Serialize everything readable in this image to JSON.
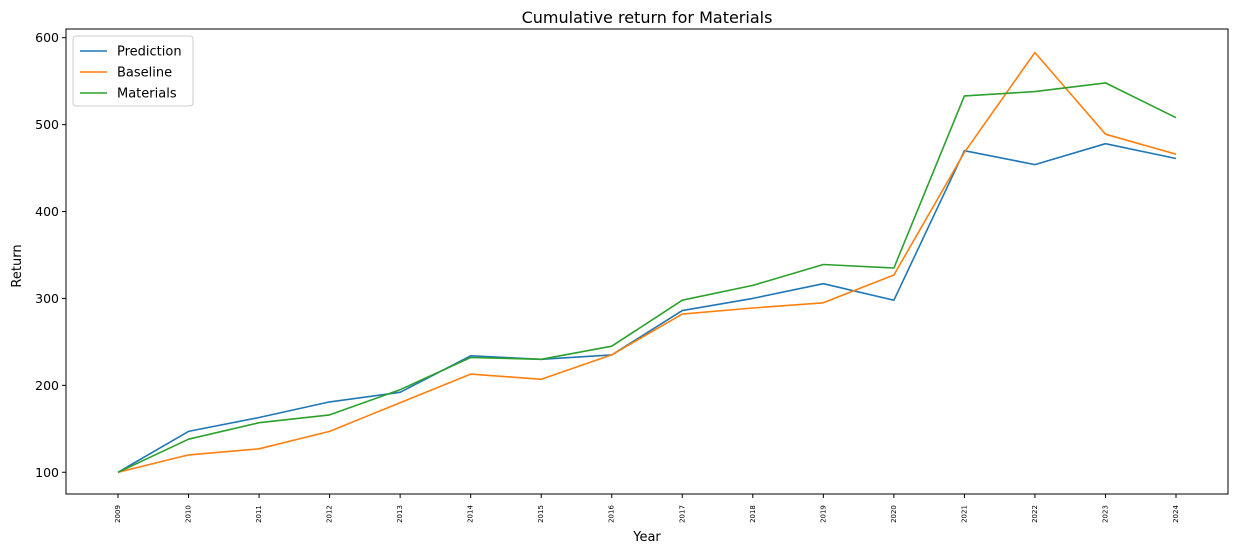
{
  "chart_data": {
    "type": "line",
    "title": "Cumulative return for Materials",
    "xlabel": "Year",
    "ylabel": "Return",
    "categories": [
      "2009",
      "2010",
      "2011",
      "2012",
      "2013",
      "2014",
      "2015",
      "2016",
      "2017",
      "2018",
      "2019",
      "2020",
      "2021",
      "2022",
      "2023",
      "2024"
    ],
    "y_ticks": [
      100,
      200,
      300,
      400,
      500,
      600
    ],
    "ylim": [
      75,
      610
    ],
    "grid": false,
    "legend_position": "upper-left",
    "series": [
      {
        "name": "Prediction",
        "color": "#1f77b4",
        "values": [
          100,
          147,
          163,
          181,
          192,
          234,
          230,
          235,
          286,
          300,
          317,
          298,
          470,
          454,
          478,
          461
        ]
      },
      {
        "name": "Baseline",
        "color": "#ff7f0e",
        "values": [
          100,
          120,
          127,
          147,
          180,
          213,
          207,
          235,
          282,
          289,
          295,
          327,
          468,
          583,
          489,
          466
        ]
      },
      {
        "name": "Materials",
        "color": "#2ca02c",
        "values": [
          100,
          138,
          157,
          166,
          195,
          232,
          230,
          245,
          298,
          315,
          339,
          335,
          533,
          538,
          548,
          508
        ]
      }
    ]
  }
}
